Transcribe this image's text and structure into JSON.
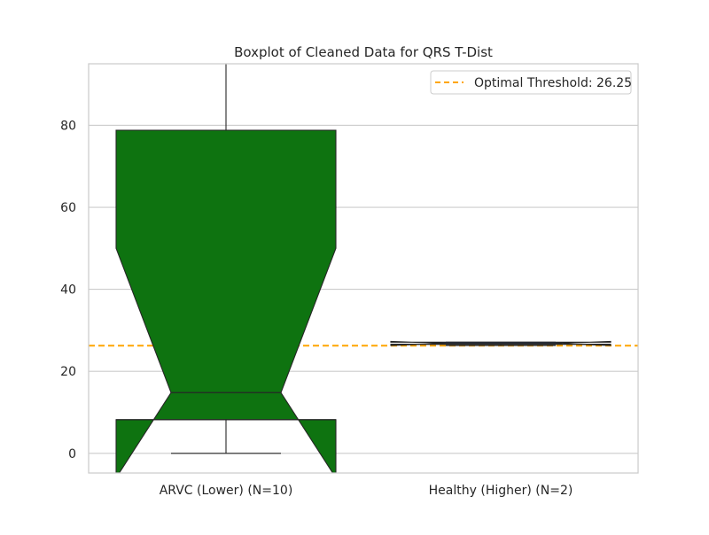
{
  "chart_data": {
    "type": "box",
    "title": "Boxplot of Cleaned Data for QRS T-Dist",
    "xlabel": "",
    "ylabel": "",
    "ylim": [
      -4.8,
      95
    ],
    "yticks": [
      0,
      20,
      40,
      60,
      80
    ],
    "categories": [
      "ARVC (Lower) (N=10)",
      "Healthy (Higher) (N=2)"
    ],
    "boxes": [
      {
        "category": "ARVC (Lower) (N=10)",
        "whisker_low": 0,
        "q1": 8.2,
        "median": 14.8,
        "q3": 78.8,
        "whisker_high": 95,
        "notch_low": -6,
        "notch_high": 50,
        "color": "#0e7310"
      },
      {
        "category": "Healthy (Higher) (N=2)",
        "whisker_low": 26.3,
        "q1": 26.6,
        "median": 26.8,
        "q3": 27.1,
        "whisker_high": 27.1,
        "notch_low": 26.3,
        "notch_high": 27.3,
        "color": "#3a5fa0"
      }
    ],
    "threshold": {
      "label": "Optimal Threshold: 26.25",
      "value": 26.25,
      "color": "#ffa500",
      "style": "dashed"
    },
    "grid": true,
    "legend_position": "top-right"
  }
}
